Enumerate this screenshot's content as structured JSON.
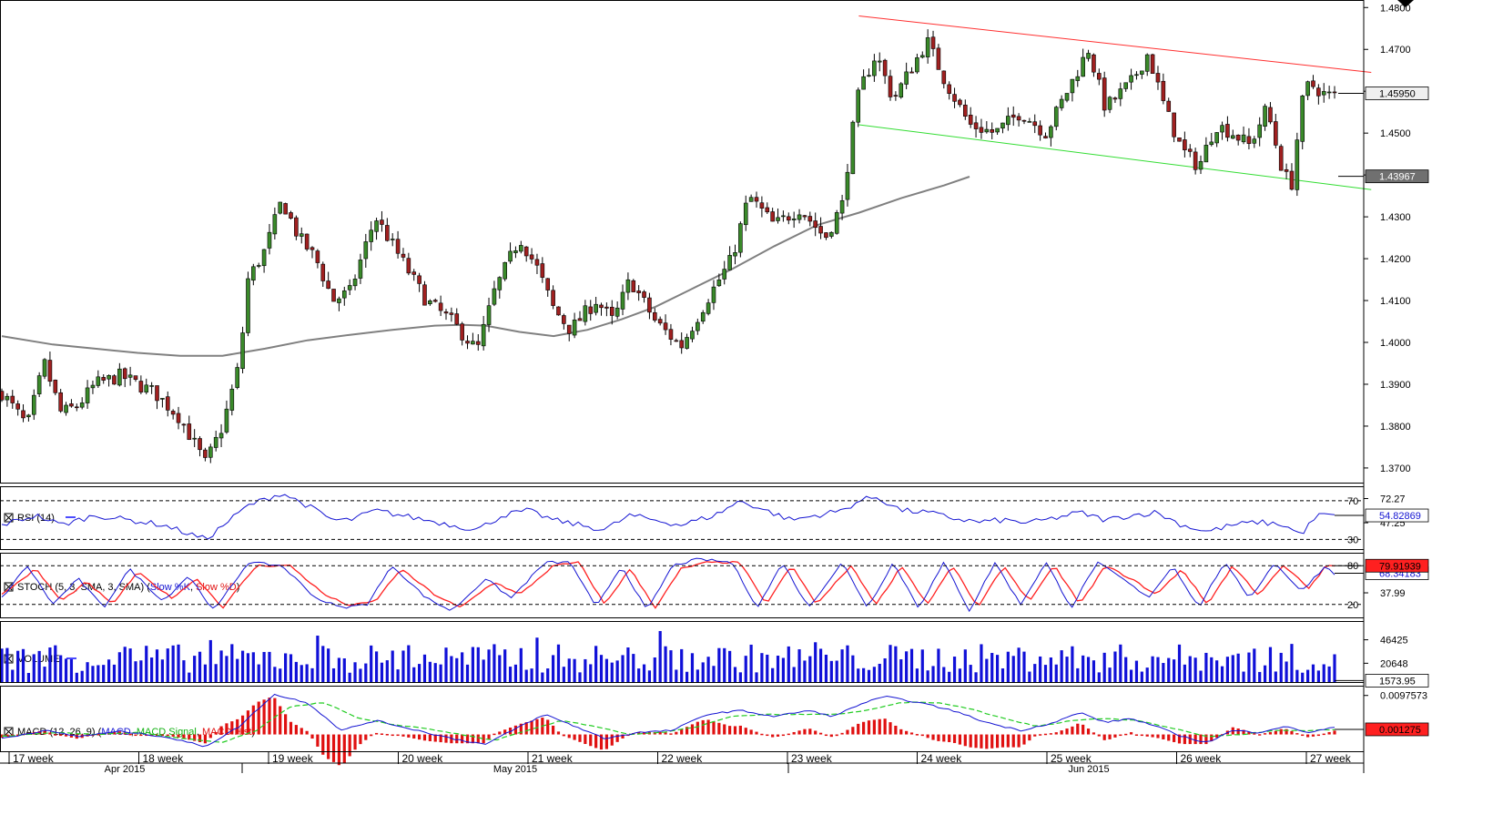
{
  "chart_data": {
    "type": "candlestick",
    "instrument_price": {
      "y_ticks": [
        "1.4800",
        "1.4700",
        "1.4600",
        "1.4500",
        "1.4400",
        "1.4300",
        "1.4200",
        "1.4100",
        "1.4000",
        "1.3900",
        "1.3800",
        "1.3700"
      ],
      "ylim": [
        1.3665,
        1.4818
      ],
      "last_price": "1.45950",
      "sma_value": "1.43967",
      "channel_upper": {
        "start": [
          23.55,
          1.478
        ],
        "end": [
          27.5,
          1.4645
        ]
      },
      "channel_lower": {
        "start": [
          23.55,
          1.452
        ],
        "end": [
          27.5,
          1.4365
        ]
      },
      "sma200": [
        [
          15.9,
          1.4015
        ],
        [
          16.5,
          1.3995
        ],
        [
          17.0,
          1.3985
        ],
        [
          17.5,
          1.3975
        ],
        [
          18.0,
          1.3968
        ],
        [
          18.5,
          1.3968
        ],
        [
          19.0,
          1.3985
        ],
        [
          19.5,
          1.4005
        ],
        [
          20.0,
          1.4018
        ],
        [
          20.5,
          1.403
        ],
        [
          21.0,
          1.404
        ],
        [
          21.3,
          1.4042
        ],
        [
          21.6,
          1.404
        ],
        [
          22.0,
          1.4025
        ],
        [
          22.4,
          1.4015
        ],
        [
          22.8,
          1.403
        ],
        [
          23.2,
          1.4055
        ],
        [
          23.6,
          1.4085
        ],
        [
          24.0,
          1.4125
        ],
        [
          24.5,
          1.4175
        ],
        [
          25.0,
          1.423
        ],
        [
          25.5,
          1.428
        ],
        [
          26.0,
          1.431
        ],
        [
          26.5,
          1.4345
        ],
        [
          27.0,
          1.4375
        ],
        [
          27.3,
          1.4396
        ]
      ],
      "anchors": [
        [
          15.9,
          1.388
        ],
        [
          16.2,
          1.38
        ],
        [
          16.4,
          1.395
        ],
        [
          16.6,
          1.383
        ],
        [
          16.8,
          1.385
        ],
        [
          17.0,
          1.39
        ],
        [
          17.3,
          1.392
        ],
        [
          17.7,
          1.388
        ],
        [
          18.0,
          1.382
        ],
        [
          18.3,
          1.371
        ],
        [
          18.5,
          1.38
        ],
        [
          18.7,
          1.395
        ],
        [
          18.8,
          1.415
        ],
        [
          19.0,
          1.422
        ],
        [
          19.2,
          1.434
        ],
        [
          19.4,
          1.425
        ],
        [
          19.6,
          1.42
        ],
        [
          19.8,
          1.41
        ],
        [
          20.0,
          1.412
        ],
        [
          20.3,
          1.43
        ],
        [
          20.6,
          1.42
        ],
        [
          20.9,
          1.41
        ],
        [
          21.2,
          1.405
        ],
        [
          21.5,
          1.398
        ],
        [
          21.7,
          1.412
        ],
        [
          22.0,
          1.425
        ],
        [
          22.2,
          1.418
        ],
        [
          22.4,
          1.408
        ],
        [
          22.6,
          1.403
        ],
        [
          22.9,
          1.41
        ],
        [
          23.1,
          1.405
        ],
        [
          23.3,
          1.415
        ],
        [
          23.6,
          1.405
        ],
        [
          23.9,
          1.399
        ],
        [
          24.2,
          1.41
        ],
        [
          24.5,
          1.42
        ],
        [
          24.7,
          1.435
        ],
        [
          25.0,
          1.428
        ],
        [
          25.3,
          1.432
        ],
        [
          25.6,
          1.425
        ],
        [
          25.8,
          1.433
        ],
        [
          25.9,
          1.448
        ],
        [
          26.0,
          1.46
        ],
        [
          26.2,
          1.469
        ],
        [
          26.4,
          1.458
        ],
        [
          26.6,
          1.465
        ],
        [
          26.8,
          1.472
        ],
        [
          27.0,
          1.463
        ],
        [
          27.3,
          1.452
        ],
        [
          27.6,
          1.45
        ],
        [
          27.9,
          1.455
        ],
        [
          28.2,
          1.45
        ],
        [
          28.5,
          1.462
        ],
        [
          28.7,
          1.47
        ],
        [
          28.9,
          1.456
        ],
        [
          29.2,
          1.462
        ],
        [
          29.4,
          1.469
        ],
        [
          29.6,
          1.456
        ],
        [
          29.8,
          1.446
        ],
        [
          30.0,
          1.442
        ],
        [
          30.2,
          1.452
        ],
        [
          30.4,
          1.45
        ],
        [
          30.6,
          1.447
        ],
        [
          30.8,
          1.456
        ],
        [
          31.0,
          1.44
        ],
        [
          31.1,
          1.438
        ],
        [
          31.2,
          1.456
        ],
        [
          31.3,
          1.462
        ],
        [
          31.5,
          1.459
        ]
      ]
    },
    "x_axis": {
      "week_labels": [
        "17 week",
        "18 week",
        "19 week",
        "20 week",
        "21 week",
        "22 week",
        "23 week",
        "24 week",
        "25 week",
        "26 week",
        "27 week"
      ],
      "month_labels": [
        "Apr 2015",
        "May 2015",
        "Jun 2015"
      ]
    },
    "rsi": {
      "title": "RSI (14)",
      "levels": [
        "70",
        "30"
      ],
      "right_labels": [
        "72.27",
        "47.25"
      ],
      "current": "54.82869",
      "ylim": [
        20,
        85
      ],
      "anchors": [
        [
          15.9,
          45
        ],
        [
          16.3,
          55
        ],
        [
          16.6,
          45
        ],
        [
          17.0,
          55
        ],
        [
          17.4,
          50
        ],
        [
          17.8,
          45
        ],
        [
          18.3,
          30
        ],
        [
          18.8,
          65
        ],
        [
          19.2,
          78
        ],
        [
          19.5,
          65
        ],
        [
          19.8,
          50
        ],
        [
          20.0,
          50
        ],
        [
          20.3,
          60
        ],
        [
          20.6,
          55
        ],
        [
          20.9,
          50
        ],
        [
          21.2,
          45
        ],
        [
          21.5,
          40
        ],
        [
          21.8,
          55
        ],
        [
          22.1,
          60
        ],
        [
          22.4,
          50
        ],
        [
          22.7,
          45
        ],
        [
          23.0,
          40
        ],
        [
          23.3,
          55
        ],
        [
          23.6,
          50
        ],
        [
          23.9,
          45
        ],
        [
          24.3,
          55
        ],
        [
          24.6,
          70
        ],
        [
          24.9,
          60
        ],
        [
          25.2,
          50
        ],
        [
          25.5,
          55
        ],
        [
          25.8,
          60
        ],
        [
          26.0,
          70
        ],
        [
          26.2,
          74
        ],
        [
          26.5,
          60
        ],
        [
          26.8,
          58
        ],
        [
          27.1,
          52
        ],
        [
          27.4,
          48
        ],
        [
          27.7,
          50
        ],
        [
          28.0,
          47
        ],
        [
          28.3,
          52
        ],
        [
          28.6,
          58
        ],
        [
          28.9,
          50
        ],
        [
          29.2,
          55
        ],
        [
          29.5,
          58
        ],
        [
          29.8,
          45
        ],
        [
          30.1,
          38
        ],
        [
          30.4,
          45
        ],
        [
          30.7,
          48
        ],
        [
          31.0,
          45
        ],
        [
          31.2,
          35
        ],
        [
          31.4,
          55
        ],
        [
          31.6,
          55
        ]
      ]
    },
    "stoch": {
      "title": "STOCH (5, 3, SMA, 3, SMA)",
      "legend": [
        "Slow %K",
        "Slow %D"
      ],
      "levels": [
        "80",
        "20"
      ],
      "right_labels": [
        "37.99"
      ],
      "current_d": "79.91939",
      "current_k": "68.34183",
      "ylim": [
        0,
        100
      ],
      "k_anchors": [
        [
          15.9,
          30
        ],
        [
          16.2,
          80
        ],
        [
          16.5,
          20
        ],
        [
          16.8,
          60
        ],
        [
          17.1,
          15
        ],
        [
          17.4,
          75
        ],
        [
          17.8,
          25
        ],
        [
          18.1,
          65
        ],
        [
          18.4,
          10
        ],
        [
          18.8,
          85
        ],
        [
          19.2,
          80
        ],
        [
          19.6,
          30
        ],
        [
          19.9,
          15
        ],
        [
          20.2,
          20
        ],
        [
          20.5,
          80
        ],
        [
          20.9,
          30
        ],
        [
          21.2,
          10
        ],
        [
          21.6,
          60
        ],
        [
          21.9,
          30
        ],
        [
          22.3,
          85
        ],
        [
          22.6,
          85
        ],
        [
          22.9,
          15
        ],
        [
          23.2,
          80
        ],
        [
          23.5,
          10
        ],
        [
          23.8,
          80
        ],
        [
          24.1,
          90
        ],
        [
          24.5,
          85
        ],
        [
          24.8,
          15
        ],
        [
          25.1,
          85
        ],
        [
          25.4,
          15
        ],
        [
          25.8,
          85
        ],
        [
          26.1,
          15
        ],
        [
          26.4,
          85
        ],
        [
          26.7,
          15
        ],
        [
          27.0,
          85
        ],
        [
          27.3,
          10
        ],
        [
          27.6,
          85
        ],
        [
          27.9,
          20
        ],
        [
          28.2,
          85
        ],
        [
          28.5,
          15
        ],
        [
          28.8,
          85
        ],
        [
          29.1,
          60
        ],
        [
          29.4,
          30
        ],
        [
          29.7,
          80
        ],
        [
          30.0,
          15
        ],
        [
          30.3,
          85
        ],
        [
          30.6,
          30
        ],
        [
          30.9,
          85
        ],
        [
          31.2,
          40
        ],
        [
          31.5,
          80
        ],
        [
          31.6,
          68
        ]
      ],
      "d_anchors": [
        [
          15.9,
          35
        ],
        [
          16.3,
          75
        ],
        [
          16.6,
          25
        ],
        [
          16.9,
          55
        ],
        [
          17.2,
          20
        ],
        [
          17.5,
          70
        ],
        [
          17.9,
          30
        ],
        [
          18.2,
          60
        ],
        [
          18.5,
          15
        ],
        [
          18.9,
          80
        ],
        [
          19.3,
          80
        ],
        [
          19.7,
          35
        ],
        [
          20.0,
          18
        ],
        [
          20.3,
          25
        ],
        [
          20.6,
          75
        ],
        [
          21.0,
          35
        ],
        [
          21.3,
          15
        ],
        [
          21.7,
          55
        ],
        [
          22.0,
          35
        ],
        [
          22.4,
          80
        ],
        [
          22.7,
          85
        ],
        [
          23.0,
          20
        ],
        [
          23.3,
          75
        ],
        [
          23.6,
          15
        ],
        [
          23.9,
          75
        ],
        [
          24.2,
          85
        ],
        [
          24.6,
          85
        ],
        [
          24.9,
          20
        ],
        [
          25.2,
          80
        ],
        [
          25.5,
          20
        ],
        [
          25.9,
          80
        ],
        [
          26.2,
          20
        ],
        [
          26.5,
          80
        ],
        [
          26.8,
          20
        ],
        [
          27.1,
          80
        ],
        [
          27.4,
          15
        ],
        [
          27.7,
          80
        ],
        [
          28.0,
          25
        ],
        [
          28.3,
          80
        ],
        [
          28.6,
          20
        ],
        [
          28.9,
          80
        ],
        [
          29.2,
          60
        ],
        [
          29.5,
          35
        ],
        [
          29.8,
          75
        ],
        [
          30.1,
          20
        ],
        [
          30.4,
          80
        ],
        [
          30.7,
          35
        ],
        [
          31.0,
          80
        ],
        [
          31.3,
          45
        ],
        [
          31.5,
          80
        ],
        [
          31.6,
          80
        ]
      ]
    },
    "volume": {
      "title": "VOLUME",
      "right_labels": [
        "46425",
        "20648"
      ],
      "current": "1573.95",
      "ylim": [
        0,
        67000
      ]
    },
    "macd": {
      "title": "MACD (12, 26, 9)",
      "legend": [
        "MACD",
        "MACD Signal",
        "MACD Hist"
      ],
      "right_labels": [
        "0.0097573"
      ],
      "current": "0.001275",
      "ylim": [
        -0.0042,
        0.0122
      ],
      "macd_anchors": [
        [
          15.9,
          -0.001
        ],
        [
          16.4,
          0.001
        ],
        [
          16.8,
          -0.0005
        ],
        [
          17.3,
          0.0008
        ],
        [
          17.8,
          -0.0005
        ],
        [
          18.3,
          -0.003
        ],
        [
          18.7,
          0.002
        ],
        [
          19.1,
          0.01
        ],
        [
          19.5,
          0.008
        ],
        [
          19.9,
          0.001
        ],
        [
          20.3,
          0.0035
        ],
        [
          20.7,
          0.0015
        ],
        [
          21.2,
          -0.001
        ],
        [
          21.6,
          -0.0025
        ],
        [
          22.0,
          0.002
        ],
        [
          22.3,
          0.005
        ],
        [
          22.6,
          0.0025
        ],
        [
          23.0,
          -0.001
        ],
        [
          23.4,
          0.0005
        ],
        [
          23.8,
          0.001
        ],
        [
          24.2,
          0.005
        ],
        [
          24.6,
          0.006
        ],
        [
          25.0,
          0.0045
        ],
        [
          25.4,
          0.006
        ],
        [
          25.7,
          0.0045
        ],
        [
          26.0,
          0.0075
        ],
        [
          26.3,
          0.0095
        ],
        [
          26.7,
          0.008
        ],
        [
          27.1,
          0.006
        ],
        [
          27.5,
          0.003
        ],
        [
          27.9,
          0.001
        ],
        [
          28.3,
          0.003
        ],
        [
          28.6,
          0.0055
        ],
        [
          28.9,
          0.003
        ],
        [
          29.2,
          0.004
        ],
        [
          29.5,
          0.002
        ],
        [
          29.8,
          -0.0005
        ],
        [
          30.1,
          -0.002
        ],
        [
          30.4,
          0.001
        ],
        [
          30.7,
          0.0005
        ],
        [
          31.0,
          0.002
        ],
        [
          31.3,
          0.0005
        ],
        [
          31.6,
          0.0018
        ]
      ],
      "signal_anchors": [
        [
          15.9,
          -0.0005
        ],
        [
          16.5,
          0.0005
        ],
        [
          17.0,
          0.0
        ],
        [
          17.5,
          0.0005
        ],
        [
          18.0,
          -0.001
        ],
        [
          18.5,
          -0.002
        ],
        [
          18.9,
          0.001
        ],
        [
          19.3,
          0.007
        ],
        [
          19.7,
          0.008
        ],
        [
          20.1,
          0.004
        ],
        [
          20.5,
          0.0025
        ],
        [
          20.9,
          0.0015
        ],
        [
          21.3,
          0.0
        ],
        [
          21.7,
          -0.0015
        ],
        [
          22.1,
          0.001
        ],
        [
          22.5,
          0.0035
        ],
        [
          22.9,
          0.002
        ],
        [
          23.3,
          0.0
        ],
        [
          23.7,
          0.0005
        ],
        [
          24.1,
          0.002
        ],
        [
          24.5,
          0.0045
        ],
        [
          24.9,
          0.005
        ],
        [
          25.3,
          0.005
        ],
        [
          25.7,
          0.005
        ],
        [
          26.1,
          0.006
        ],
        [
          26.5,
          0.008
        ],
        [
          26.9,
          0.008
        ],
        [
          27.3,
          0.0065
        ],
        [
          27.7,
          0.004
        ],
        [
          28.1,
          0.002
        ],
        [
          28.5,
          0.0035
        ],
        [
          28.9,
          0.004
        ],
        [
          29.3,
          0.0035
        ],
        [
          29.7,
          0.0015
        ],
        [
          30.1,
          -0.0005
        ],
        [
          30.5,
          0.0
        ],
        [
          30.9,
          0.001
        ],
        [
          31.3,
          0.001
        ],
        [
          31.6,
          0.0012
        ]
      ]
    }
  }
}
